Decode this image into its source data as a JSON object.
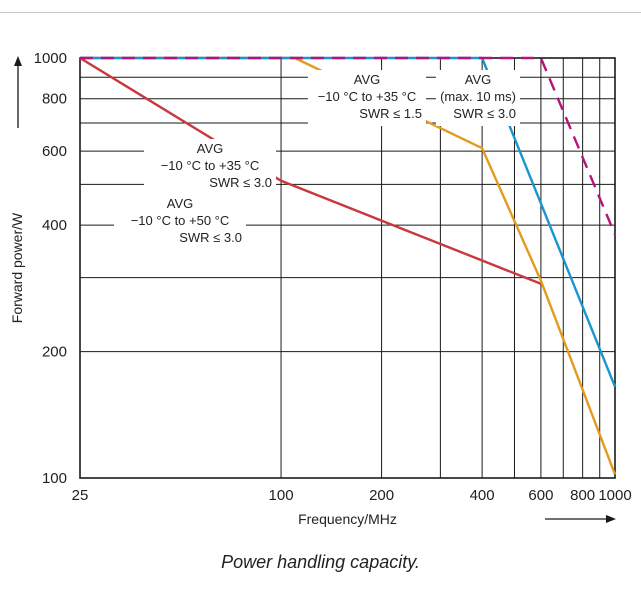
{
  "caption": "Power handling capacity.",
  "chart_data": {
    "type": "line",
    "xlabel": "Frequency/MHz",
    "ylabel": "Forward power/W",
    "x_scale": "log",
    "y_scale": "log",
    "xlim": [
      25,
      1000
    ],
    "ylim": [
      100,
      1000
    ],
    "x_ticks": [
      25,
      100,
      200,
      400,
      600,
      800,
      1000
    ],
    "y_ticks": [
      100,
      200,
      400,
      600,
      800,
      1000
    ],
    "x_grid": [
      25,
      100,
      200,
      300,
      400,
      500,
      600,
      700,
      800,
      900,
      1000
    ],
    "y_grid": [
      100,
      200,
      300,
      400,
      500,
      600,
      700,
      800,
      900,
      1000
    ],
    "grid": true,
    "series": [
      {
        "color": "#c8383c",
        "style": "solid",
        "x": [
          25,
          100,
          600
        ],
        "y": [
          1000,
          510,
          290
        ]
      },
      {
        "color": "#e39a1e",
        "style": "solid",
        "x": [
          25,
          110,
          400,
          600,
          1000
        ],
        "y": [
          1000,
          1000,
          610,
          295,
          102
        ]
      },
      {
        "color": "#1a95d0",
        "style": "solid",
        "x": [
          25,
          400,
          1000
        ],
        "y": [
          1000,
          1000,
          165
        ]
      },
      {
        "color": "#b5157a",
        "style": "dashed",
        "x": [
          25,
          600,
          1000
        ],
        "y": [
          1000,
          1000,
          380
        ]
      }
    ],
    "annotations": [
      {
        "lines": [
          "AVG",
          "−10 °C to +35 °C",
          "SWR ≤ 3.0"
        ]
      },
      {
        "lines": [
          "AVG",
          "−10 °C to +50 °C",
          "SWR ≤ 3.0"
        ]
      },
      {
        "lines": [
          "AVG",
          "−10 °C to +35 °C",
          "SWR ≤ 1.5"
        ]
      },
      {
        "lines": [
          "AVG",
          "(max. 10 ms)",
          "SWR ≤ 3.0"
        ]
      }
    ]
  }
}
